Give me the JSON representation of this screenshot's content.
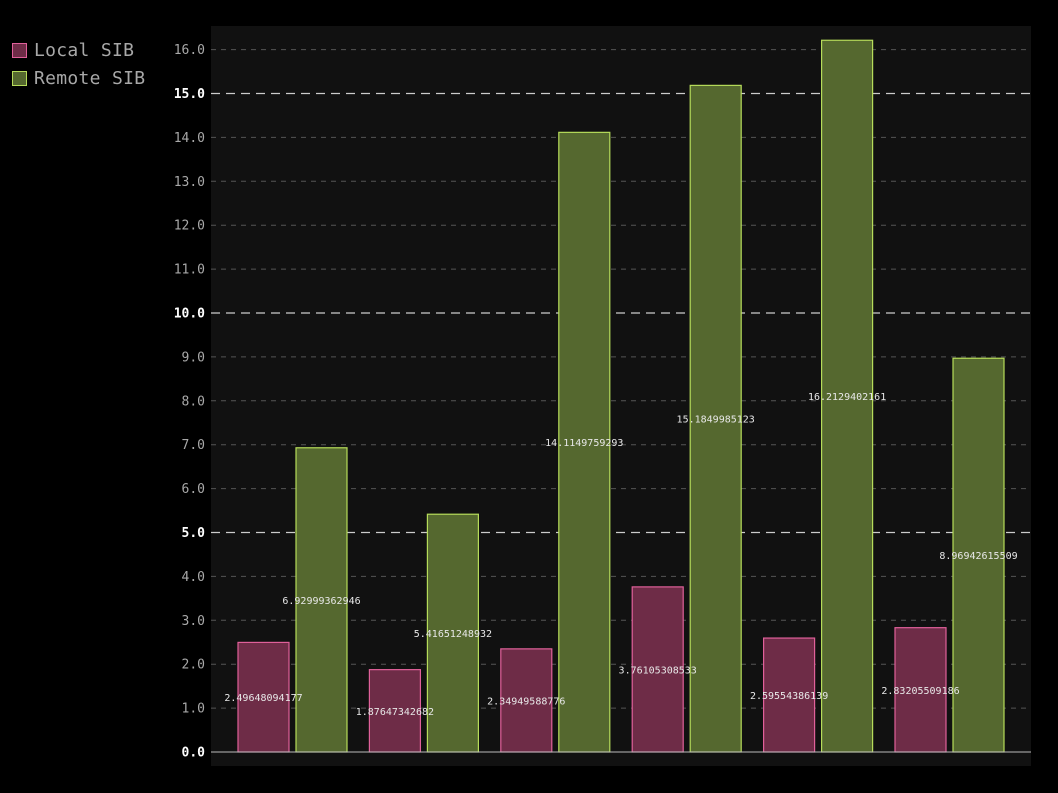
{
  "chart_data": {
    "type": "bar",
    "categories": [
      "",
      "",
      "",
      "",
      "",
      ""
    ],
    "series": [
      {
        "name": "Local SIB",
        "values": [
          2.49648094177,
          1.87647342682,
          2.34949588776,
          3.76105308533,
          2.59554386139,
          2.83205509186
        ],
        "labels": [
          "2.49648094177",
          "1.87647342682",
          "2.34949588776",
          "3.76105308533",
          "2.59554386139",
          "2.83205509186"
        ],
        "fill": "#6e2c47",
        "stroke": "#e0609a"
      },
      {
        "name": "Remote SIB",
        "values": [
          6.92999362946,
          5.41651248932,
          14.1149759293,
          15.1849985123,
          16.2129402161,
          8.96942615509
        ],
        "labels": [
          "6.92999362946",
          "5.41651248932",
          "14.1149759293",
          "15.1849985123",
          "16.2129402161",
          "8.96942615509"
        ],
        "fill": "#55682f",
        "stroke": "#b6dc5a"
      }
    ],
    "yticks": [
      "0.0",
      "1.0",
      "2.0",
      "3.0",
      "4.0",
      "5.0",
      "6.0",
      "7.0",
      "8.0",
      "9.0",
      "10.0",
      "11.0",
      "12.0",
      "13.0",
      "14.0",
      "15.0",
      "16.0"
    ],
    "major_ticks": [
      "0.0",
      "5.0",
      "10.0",
      "15.0"
    ],
    "ylim": [
      0,
      16.5
    ],
    "title": "",
    "xlabel": "",
    "ylabel": "",
    "grid": true,
    "legend_position": "top-left",
    "colors": {
      "background": "#000000",
      "plot_background": "#111111",
      "minor_grid": "#555555",
      "major_grid": "#cccccc",
      "tick_label": "#a8a8a8",
      "major_tick_label": "#ffffff",
      "value_label": "#e8e8e8"
    }
  }
}
